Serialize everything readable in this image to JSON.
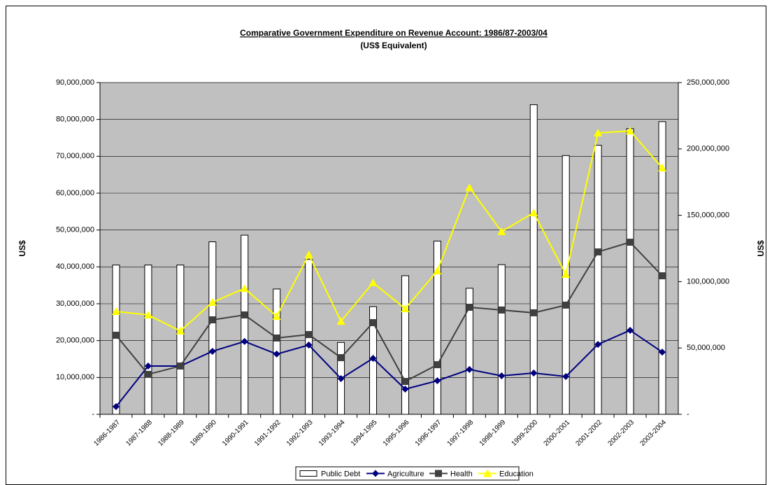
{
  "chart_data": {
    "type": "bar_line_combo",
    "title": "Comparative Government Expenditure on Revenue Account: 1986/87-2003/04",
    "subtitle": "(US$ Equivalent)",
    "ylabel": "US$",
    "y2label": "US$",
    "categories": [
      "1986-1987",
      "1987-1988",
      "1988-1989",
      "1989-1990",
      "1990-1991",
      "1991-1992",
      "1992-1993",
      "1993-1994",
      "1994-1995",
      "1995-1996",
      "1996-1997",
      "1997-1998",
      "1998-1999",
      "1999-2000",
      "2000-2001",
      "2001-2002",
      "2002-2003",
      "2003-2004"
    ],
    "series": [
      {
        "name": "Public Debt",
        "type": "bar",
        "color": "#ffffff",
        "values": [
          40500000,
          40500000,
          40500000,
          46800000,
          48600000,
          34000000,
          42000000,
          19500000,
          29200000,
          37600000,
          47000000,
          34200000,
          40600000,
          84000000,
          70200000,
          73000000,
          77500000,
          79400000
        ]
      },
      {
        "name": "Agriculture",
        "type": "line",
        "marker": "diamond",
        "color": "#000080",
        "axis": "y2",
        "values": [
          5800000,
          36400000,
          36400000,
          47500000,
          54900000,
          45400000,
          52200000,
          26900000,
          42200000,
          19000000,
          25300000,
          33800000,
          29000000,
          31100000,
          28500000,
          52700000,
          63300000,
          46900000
        ]
      },
      {
        "name": "Health",
        "type": "line",
        "marker": "square",
        "color": "#404040",
        "axis": "y2",
        "values": [
          59600000,
          30100000,
          36400000,
          71200000,
          74900000,
          57500000,
          60100000,
          42700000,
          69100000,
          24800000,
          37400000,
          80700000,
          78600000,
          76500000,
          82300000,
          122400000,
          129700000,
          104400000
        ]
      },
      {
        "name": "Education",
        "type": "line",
        "marker": "triangle",
        "color": "#ffff00",
        "axis": "y2",
        "values": [
          77500000,
          74900000,
          62800000,
          84400000,
          94900000,
          73800000,
          120300000,
          70100000,
          99200000,
          79600000,
          108100000,
          170900000,
          137700000,
          151900000,
          105500000,
          212000000,
          213600000,
          185700000
        ]
      }
    ],
    "ylim": [
      0,
      90000000
    ],
    "yticks": [
      {
        "value": 0,
        "label": "-"
      },
      {
        "value": 10000000,
        "label": "10,000,000"
      },
      {
        "value": 20000000,
        "label": "20,000,000"
      },
      {
        "value": 30000000,
        "label": "30,000,000"
      },
      {
        "value": 40000000,
        "label": "40,000,000"
      },
      {
        "value": 50000000,
        "label": "50,000,000"
      },
      {
        "value": 60000000,
        "label": "60,000,000"
      },
      {
        "value": 70000000,
        "label": "70,000,000"
      },
      {
        "value": 80000000,
        "label": "80,000,000"
      },
      {
        "value": 90000000,
        "label": "90,000,000"
      }
    ],
    "y2lim": [
      0,
      250000000
    ],
    "y2ticks": [
      {
        "value": 0,
        "label": "-"
      },
      {
        "value": 50000000,
        "label": "50,000,000"
      },
      {
        "value": 100000000,
        "label": "100,000,000"
      },
      {
        "value": 150000000,
        "label": "150,000,000"
      },
      {
        "value": 200000000,
        "label": "200,000,000"
      },
      {
        "value": 250000000,
        "label": "250,000,000"
      }
    ],
    "grid": true,
    "plot_background": "#c0c0c0",
    "legend": "bottom"
  }
}
